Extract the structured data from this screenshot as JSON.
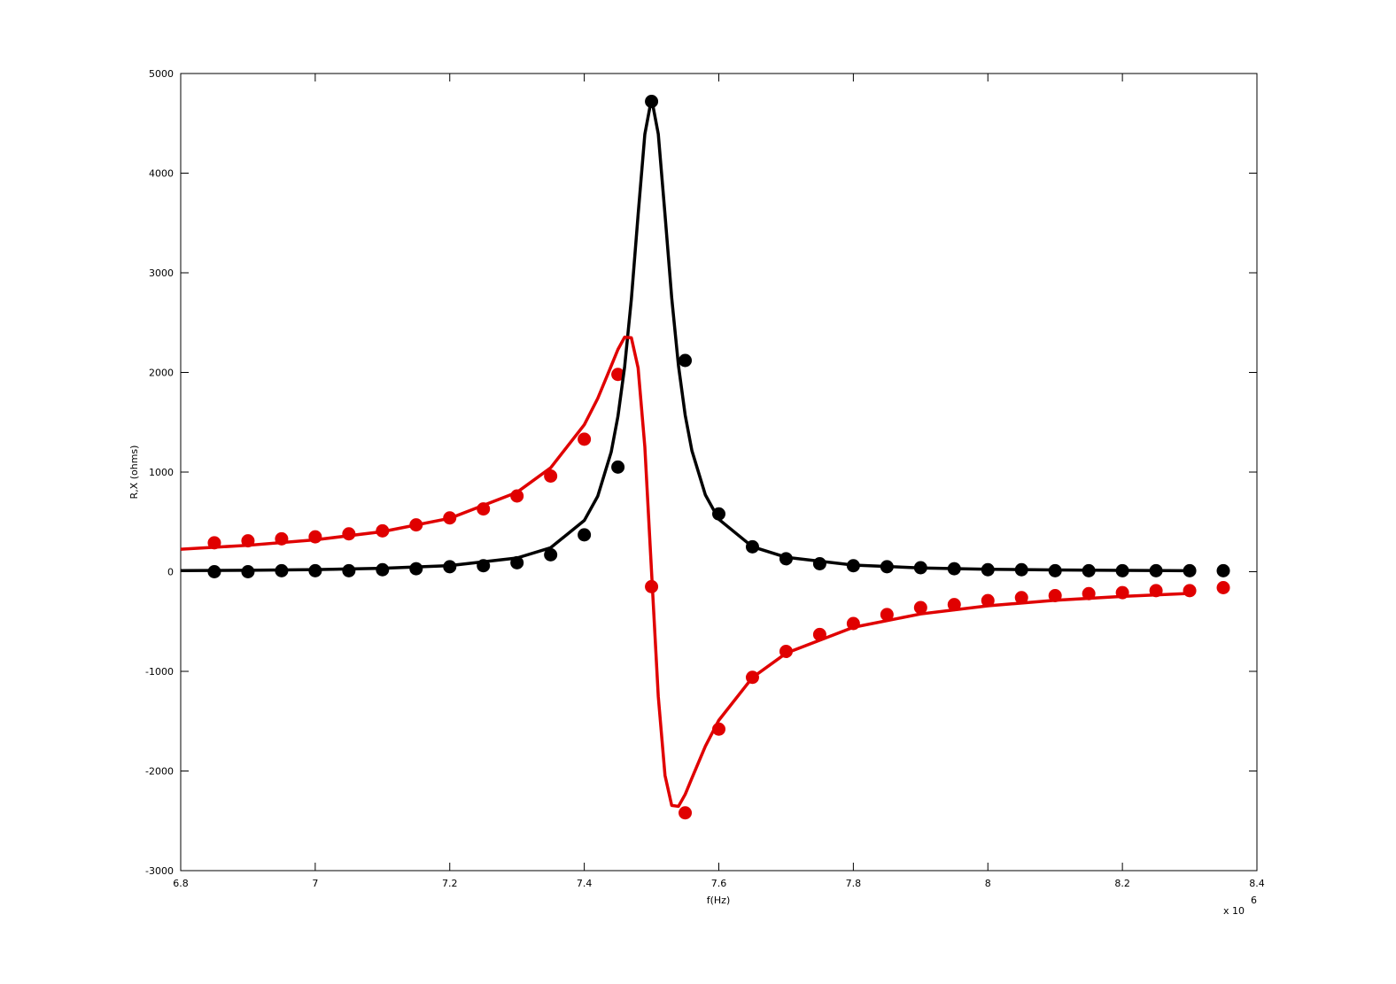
{
  "chart_data": {
    "type": "line",
    "xlabel": "f(Hz)",
    "ylabel": "R,X (ohms)",
    "x_multiplier": {
      "base": "x 10",
      "exponent": "6"
    },
    "xlim": [
      6.8,
      8.4
    ],
    "xticks": [
      6.8,
      7,
      7.2,
      7.4,
      7.6,
      7.8,
      8,
      8.2,
      8.4
    ],
    "ylim": [
      -3000,
      5000
    ],
    "yticks": [
      -3000,
      -2000,
      -1000,
      0,
      1000,
      2000,
      3000,
      4000,
      5000
    ],
    "grid": false,
    "box": true,
    "series": [
      {
        "color": "#000000",
        "marker": true,
        "x": [
          6.85,
          6.9,
          6.95,
          7.0,
          7.05,
          7.1,
          7.15,
          7.2,
          7.25,
          7.3,
          7.35,
          7.4,
          7.45,
          7.5,
          7.55,
          7.6,
          7.65,
          7.7,
          7.75,
          7.8,
          7.85,
          7.9,
          7.95,
          8.0,
          8.05,
          8.1,
          8.15,
          8.2,
          8.25,
          8.3,
          8.35
        ],
        "values": [
          0,
          0,
          10,
          10,
          10,
          20,
          30,
          50,
          60,
          90,
          170,
          370,
          1050,
          4720,
          2120,
          580,
          250,
          130,
          80,
          60,
          50,
          40,
          30,
          20,
          20,
          10,
          10,
          10,
          10,
          10,
          10
        ]
      },
      {
        "color": "#e00000",
        "marker": true,
        "x": [
          6.85,
          6.9,
          6.95,
          7.0,
          7.05,
          7.1,
          7.15,
          7.2,
          7.25,
          7.3,
          7.35,
          7.4,
          7.45,
          7.5,
          7.55,
          7.6,
          7.65,
          7.7,
          7.75,
          7.8,
          7.85,
          7.9,
          7.95,
          8.0,
          8.05,
          8.1,
          8.15,
          8.2,
          8.25,
          8.3,
          8.35
        ],
        "values": [
          290,
          310,
          330,
          350,
          380,
          410,
          470,
          540,
          630,
          760,
          960,
          1330,
          1980,
          -150,
          -2420,
          -1580,
          -1060,
          -800,
          -630,
          -520,
          -430,
          -360,
          -330,
          -290,
          -260,
          -240,
          -220,
          -210,
          -190,
          -190,
          -160
        ]
      },
      {
        "color": "#000000",
        "marker": false,
        "x": [
          6.8,
          6.9,
          7.0,
          7.1,
          7.2,
          7.3,
          7.35,
          7.4,
          7.42,
          7.44,
          7.45,
          7.46,
          7.47,
          7.48,
          7.49,
          7.5,
          7.51,
          7.52,
          7.53,
          7.54,
          7.55,
          7.56,
          7.58,
          7.6,
          7.65,
          7.7,
          7.8,
          7.9,
          8.0,
          8.1,
          8.2,
          8.3
        ],
        "values": [
          10.7,
          14.8,
          21.6,
          34.2,
          61.4,
          137.8,
          241,
          514,
          758,
          1201,
          1558,
          2057,
          2736,
          3582,
          4390,
          4750,
          4393,
          3585,
          2747,
          2069,
          1572,
          1215,
          771,
          526,
          250.5,
          145,
          66.5,
          38.1,
          24.7,
          17.4,
          13.0,
          10.0
        ]
      },
      {
        "color": "#e00000",
        "marker": false,
        "x": [
          6.8,
          6.9,
          7.0,
          7.1,
          7.2,
          7.3,
          7.35,
          7.4,
          7.42,
          7.44,
          7.45,
          7.46,
          7.47,
          7.48,
          7.49,
          7.5,
          7.51,
          7.52,
          7.53,
          7.54,
          7.55,
          7.56,
          7.58,
          7.6,
          7.65,
          7.7,
          7.8,
          7.9,
          8.0,
          8.1,
          8.2,
          8.3
        ],
        "values": [
          226,
          265,
          320,
          402,
          536,
          797,
          1043,
          1475,
          1739,
          2065,
          2230,
          2354,
          2348,
          2046,
          1255,
          0,
          -1252,
          -2044,
          -2346,
          -2355,
          -2235,
          -2072,
          -1752,
          -1491,
          -1062,
          -818,
          -558,
          -424,
          -342,
          -287,
          -248,
          -218
        ]
      }
    ]
  }
}
